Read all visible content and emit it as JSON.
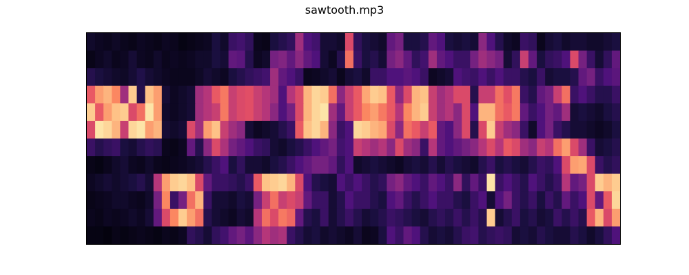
{
  "chart_data": {
    "type": "heatmap",
    "title": "sawtooth.mp3",
    "xlabel": "",
    "ylabel": "",
    "colormap": "magma",
    "n_cols": 64,
    "n_rows": 12,
    "value_range": [
      0,
      1
    ],
    "grid": false,
    "colorbar": false,
    "values": [
      [
        0.08,
        0.06,
        0.05,
        0.07,
        0.05,
        0.04,
        0.06,
        0.05,
        0.04,
        0.06,
        0.05,
        0.03,
        0.04,
        0.05,
        0.06,
        0.12,
        0.08,
        0.2,
        0.22,
        0.18,
        0.05,
        0.04,
        0.12,
        0.15,
        0.18,
        0.45,
        0.25,
        0.22,
        0.1,
        0.1,
        0.08,
        0.6,
        0.18,
        0.12,
        0.1,
        0.08,
        0.3,
        0.35,
        0.12,
        0.12,
        0.15,
        0.3,
        0.25,
        0.12,
        0.1,
        0.12,
        0.1,
        0.4,
        0.25,
        0.15,
        0.08,
        0.06,
        0.2,
        0.18,
        0.05,
        0.1,
        0.12,
        0.08,
        0.1,
        0.1,
        0.08,
        0.08,
        0.1,
        0.12
      ],
      [
        0.04,
        0.06,
        0.08,
        0.05,
        0.06,
        0.1,
        0.06,
        0.05,
        0.08,
        0.05,
        0.06,
        0.05,
        0.06,
        0.08,
        0.08,
        0.12,
        0.1,
        0.3,
        0.28,
        0.15,
        0.06,
        0.08,
        0.35,
        0.38,
        0.3,
        0.4,
        0.3,
        0.25,
        0.1,
        0.06,
        0.15,
        0.7,
        0.2,
        0.12,
        0.15,
        0.1,
        0.35,
        0.4,
        0.3,
        0.18,
        0.22,
        0.45,
        0.3,
        0.25,
        0.2,
        0.2,
        0.35,
        0.45,
        0.4,
        0.35,
        0.1,
        0.18,
        0.55,
        0.3,
        0.12,
        0.18,
        0.2,
        0.25,
        0.6,
        0.35,
        0.2,
        0.1,
        0.18,
        0.3
      ],
      [
        0.15,
        0.12,
        0.1,
        0.08,
        0.07,
        0.1,
        0.14,
        0.1,
        0.08,
        0.06,
        0.05,
        0.05,
        0.05,
        0.07,
        0.1,
        0.08,
        0.06,
        0.12,
        0.15,
        0.18,
        0.2,
        0.22,
        0.45,
        0.3,
        0.25,
        0.2,
        0.05,
        0.06,
        0.08,
        0.1,
        0.05,
        0.1,
        0.12,
        0.08,
        0.2,
        0.2,
        0.25,
        0.25,
        0.28,
        0.25,
        0.2,
        0.06,
        0.08,
        0.1,
        0.25,
        0.22,
        0.2,
        0.25,
        0.2,
        0.25,
        0.2,
        0.2,
        0.15,
        0.12,
        0.2,
        0.1,
        0.12,
        0.12,
        0.15,
        0.3,
        0.35,
        0.2,
        0.25,
        0.28
      ],
      [
        0.65,
        0.8,
        0.85,
        0.75,
        0.45,
        0.9,
        0.15,
        0.88,
        0.8,
        0.1,
        0.06,
        0.08,
        0.1,
        0.45,
        0.5,
        0.65,
        0.72,
        0.55,
        0.6,
        0.62,
        0.55,
        0.5,
        0.45,
        0.25,
        0.5,
        0.6,
        0.85,
        0.92,
        0.9,
        0.7,
        0.4,
        0.55,
        0.65,
        0.82,
        0.9,
        0.88,
        0.65,
        0.4,
        0.6,
        0.85,
        0.88,
        0.55,
        0.45,
        0.5,
        0.6,
        0.6,
        0.15,
        0.55,
        0.55,
        0.7,
        0.62,
        0.72,
        0.2,
        0.15,
        0.3,
        0.35,
        0.55,
        0.7,
        0.2,
        0.25,
        0.2,
        0.15,
        0.15,
        0.2
      ],
      [
        0.9,
        0.65,
        0.8,
        0.88,
        0.9,
        0.6,
        0.7,
        0.95,
        0.8,
        0.08,
        0.06,
        0.08,
        0.1,
        0.45,
        0.5,
        0.55,
        0.72,
        0.55,
        0.6,
        0.62,
        0.55,
        0.5,
        0.4,
        0.25,
        0.35,
        0.6,
        0.85,
        0.92,
        0.95,
        0.45,
        0.3,
        0.55,
        0.65,
        0.75,
        0.8,
        0.72,
        0.65,
        0.5,
        0.75,
        0.85,
        0.9,
        0.55,
        0.45,
        0.5,
        0.4,
        0.6,
        0.25,
        0.85,
        0.85,
        0.7,
        0.65,
        0.72,
        0.3,
        0.2,
        0.25,
        0.35,
        0.3,
        0.45,
        0.1,
        0.12,
        0.1,
        0.08,
        0.12,
        0.15
      ],
      [
        0.6,
        0.95,
        0.92,
        0.85,
        0.55,
        0.92,
        0.95,
        0.8,
        0.85,
        0.1,
        0.08,
        0.1,
        0.6,
        0.45,
        0.8,
        0.88,
        0.55,
        0.45,
        0.4,
        0.1,
        0.06,
        0.08,
        0.1,
        0.15,
        0.2,
        0.65,
        0.88,
        0.92,
        0.85,
        0.4,
        0.2,
        0.25,
        0.92,
        0.9,
        0.85,
        0.82,
        0.6,
        0.4,
        0.7,
        0.65,
        0.55,
        0.65,
        0.3,
        0.25,
        0.4,
        0.6,
        0.15,
        0.6,
        0.9,
        0.55,
        0.45,
        0.4,
        0.2,
        0.08,
        0.25,
        0.35,
        0.2,
        0.15,
        0.1,
        0.1,
        0.08,
        0.06,
        0.08,
        0.12
      ],
      [
        0.2,
        0.15,
        0.18,
        0.2,
        0.12,
        0.1,
        0.15,
        0.18,
        0.16,
        0.05,
        0.04,
        0.06,
        0.3,
        0.15,
        0.4,
        0.6,
        0.48,
        0.35,
        0.3,
        0.25,
        0.2,
        0.18,
        0.1,
        0.08,
        0.12,
        0.15,
        0.2,
        0.25,
        0.3,
        0.35,
        0.22,
        0.25,
        0.55,
        0.5,
        0.45,
        0.5,
        0.4,
        0.6,
        0.45,
        0.4,
        0.2,
        0.5,
        0.3,
        0.25,
        0.3,
        0.35,
        0.4,
        0.5,
        0.6,
        0.5,
        0.65,
        0.6,
        0.45,
        0.4,
        0.55,
        0.5,
        0.7,
        0.8,
        0.6,
        0.45,
        0.2,
        0.1,
        0.12,
        0.15
      ],
      [
        0.04,
        0.03,
        0.05,
        0.08,
        0.1,
        0.06,
        0.05,
        0.08,
        0.05,
        0.04,
        0.05,
        0.06,
        0.08,
        0.1,
        0.15,
        0.2,
        0.25,
        0.12,
        0.18,
        0.1,
        0.1,
        0.08,
        0.12,
        0.15,
        0.2,
        0.25,
        0.3,
        0.35,
        0.35,
        0.3,
        0.18,
        0.25,
        0.08,
        0.1,
        0.12,
        0.1,
        0.08,
        0.06,
        0.1,
        0.12,
        0.1,
        0.15,
        0.1,
        0.15,
        0.12,
        0.1,
        0.08,
        0.15,
        0.2,
        0.12,
        0.15,
        0.12,
        0.1,
        0.15,
        0.2,
        0.18,
        0.25,
        0.6,
        0.8,
        0.82,
        0.6,
        0.2,
        0.15,
        0.18
      ],
      [
        0.06,
        0.08,
        0.1,
        0.08,
        0.1,
        0.12,
        0.15,
        0.1,
        0.5,
        0.8,
        0.9,
        0.92,
        0.88,
        0.6,
        0.3,
        0.2,
        0.2,
        0.18,
        0.15,
        0.2,
        0.65,
        0.88,
        0.9,
        0.92,
        0.85,
        0.6,
        0.25,
        0.15,
        0.12,
        0.1,
        0.25,
        0.2,
        0.25,
        0.2,
        0.15,
        0.18,
        0.35,
        0.4,
        0.3,
        0.25,
        0.2,
        0.3,
        0.25,
        0.2,
        0.4,
        0.18,
        0.3,
        0.2,
        0.95,
        0.2,
        0.25,
        0.2,
        0.15,
        0.25,
        0.2,
        0.15,
        0.2,
        0.5,
        0.3,
        0.35,
        0.6,
        0.9,
        0.85,
        0.9
      ],
      [
        0.04,
        0.05,
        0.06,
        0.08,
        0.08,
        0.06,
        0.05,
        0.08,
        0.35,
        0.75,
        0.2,
        0.35,
        0.7,
        0.85,
        0.2,
        0.1,
        0.1,
        0.08,
        0.12,
        0.1,
        0.35,
        0.55,
        0.7,
        0.55,
        0.6,
        0.55,
        0.3,
        0.2,
        0.2,
        0.1,
        0.15,
        0.25,
        0.2,
        0.2,
        0.15,
        0.12,
        0.25,
        0.3,
        0.2,
        0.15,
        0.2,
        0.25,
        0.2,
        0.2,
        0.15,
        0.12,
        0.2,
        0.25,
        0.1,
        0.25,
        0.35,
        0.2,
        0.15,
        0.2,
        0.12,
        0.2,
        0.15,
        0.3,
        0.2,
        0.25,
        0.6,
        0.3,
        0.65,
        0.92
      ],
      [
        0.05,
        0.04,
        0.06,
        0.05,
        0.06,
        0.08,
        0.06,
        0.1,
        0.3,
        0.6,
        0.75,
        0.9,
        0.8,
        0.7,
        0.15,
        0.1,
        0.08,
        0.06,
        0.1,
        0.08,
        0.5,
        0.7,
        0.6,
        0.72,
        0.68,
        0.3,
        0.15,
        0.12,
        0.2,
        0.1,
        0.15,
        0.2,
        0.15,
        0.1,
        0.12,
        0.15,
        0.2,
        0.18,
        0.15,
        0.12,
        0.1,
        0.15,
        0.18,
        0.15,
        0.2,
        0.15,
        0.2,
        0.15,
        0.9,
        0.1,
        0.15,
        0.2,
        0.12,
        0.15,
        0.1,
        0.12,
        0.2,
        0.15,
        0.2,
        0.15,
        0.65,
        0.85,
        0.6,
        0.8
      ],
      [
        0.03,
        0.03,
        0.02,
        0.04,
        0.03,
        0.04,
        0.05,
        0.04,
        0.03,
        0.05,
        0.04,
        0.06,
        0.18,
        0.15,
        0.1,
        0.18,
        0.22,
        0.3,
        0.35,
        0.28,
        0.4,
        0.5,
        0.45,
        0.48,
        0.2,
        0.15,
        0.1,
        0.12,
        0.08,
        0.1,
        0.08,
        0.06,
        0.1,
        0.05,
        0.06,
        0.12,
        0.25,
        0.2,
        0.3,
        0.25,
        0.15,
        0.1,
        0.12,
        0.1,
        0.15,
        0.2,
        0.22,
        0.15,
        0.18,
        0.2,
        0.18,
        0.1,
        0.12,
        0.1,
        0.15,
        0.12,
        0.1,
        0.1,
        0.15,
        0.12,
        0.08,
        0.12,
        0.18,
        0.25
      ]
    ]
  }
}
